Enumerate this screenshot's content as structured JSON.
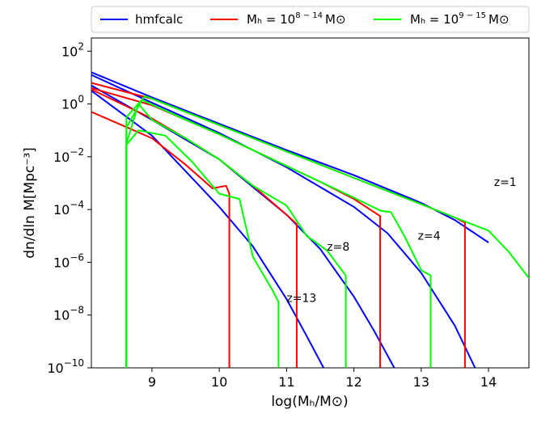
{
  "chart_data": {
    "type": "line",
    "xlabel": "log(Mₕ/M⊙)",
    "ylabel": "dn/dln M[Mpc⁻³]",
    "xlim": [
      8.1,
      14.6
    ],
    "ylim": [
      -10,
      2.5
    ],
    "y_scale": "log10",
    "x_ticks": [
      9,
      10,
      11,
      12,
      13,
      14
    ],
    "x_tick_labels": [
      "9",
      "10",
      "11",
      "12",
      "13",
      "14"
    ],
    "y_ticks": [
      2,
      0,
      -2,
      -4,
      -6,
      -8,
      -10
    ],
    "y_tick_labels": [
      {
        "base": "10",
        "exp": "2"
      },
      {
        "base": "10",
        "exp": "0"
      },
      {
        "base": "10",
        "exp": "−2"
      },
      {
        "base": "10",
        "exp": "−4"
      },
      {
        "base": "10",
        "exp": "−6"
      },
      {
        "base": "10",
        "exp": "−8"
      },
      {
        "base": "10",
        "exp": "−10"
      }
    ],
    "legend": {
      "placement": "top",
      "entries": [
        {
          "label": "hmfcalc",
          "color": "#0000ff"
        },
        {
          "label_main": "Mₕ = 10",
          "label_exp": "8 − 14",
          "label_end": "M⊙",
          "color": "#ff0000"
        },
        {
          "label_main": "Mₕ = 10",
          "label_exp": "9 − 15",
          "label_end": "M⊙",
          "color": "#00ff00"
        }
      ]
    },
    "annotations": [
      {
        "text": "z=1",
        "x": 14.08,
        "y": -3.1
      },
      {
        "text": "z=4",
        "x": 12.95,
        "y": -5.15
      },
      {
        "text": "z=8",
        "x": 11.6,
        "y": -5.55
      },
      {
        "text": "z=13",
        "x": 11.0,
        "y": -7.5
      }
    ],
    "series": [
      {
        "name": "hmfcalc z=1",
        "color": "#0000ff",
        "x": [
          8.1,
          9,
          10,
          11,
          12,
          13,
          13.5,
          14
        ],
        "y": [
          1.2,
          0.25,
          -0.75,
          -1.75,
          -2.7,
          -3.75,
          -4.4,
          -5.25
        ]
      },
      {
        "name": "hmfcalc z=4",
        "color": "#0000ff",
        "x": [
          8.1,
          9,
          10,
          11,
          12,
          12.5,
          13,
          13.5,
          13.8
        ],
        "y": [
          1.1,
          0.05,
          -1.1,
          -2.4,
          -3.9,
          -4.9,
          -6.4,
          -8.4,
          -10
        ]
      },
      {
        "name": "hmfcalc z=8",
        "color": "#0000ff",
        "x": [
          8.1,
          9,
          10,
          11,
          11.5,
          12,
          12.3,
          12.6
        ],
        "y": [
          0.7,
          -0.6,
          -2.1,
          -4.2,
          -5.5,
          -7.3,
          -8.6,
          -10
        ]
      },
      {
        "name": "hmfcalc z=13",
        "color": "#0000ff",
        "x": [
          8.1,
          9,
          10,
          10.5,
          11,
          11.3,
          11.55
        ],
        "y": [
          0.5,
          -1.2,
          -3.9,
          -5.4,
          -7.4,
          -8.8,
          -10
        ]
      },
      {
        "name": "Mh 1e8-14 z=1",
        "color": "#ff0000",
        "x": [
          8.1,
          9,
          9.5,
          10,
          10.5,
          11,
          11.5,
          12,
          12.5,
          13,
          13.5,
          13.65,
          13.65
        ],
        "y": [
          0.8,
          0.2,
          -0.3,
          -0.8,
          -1.3,
          -1.8,
          -2.3,
          -2.8,
          -3.3,
          -3.8,
          -4.3,
          -4.5,
          -10
        ]
      },
      {
        "name": "Mh 1e8-14 z=4",
        "color": "#ff0000",
        "x": [
          8.1,
          9,
          9.5,
          10,
          10.5,
          11,
          11.5,
          12,
          12.39,
          12.39
        ],
        "y": [
          0.6,
          -0.05,
          -0.6,
          -1.15,
          -1.75,
          -2.35,
          -2.95,
          -3.6,
          -4.25,
          -10
        ]
      },
      {
        "name": "Mh 1e8-14 z=8",
        "color": "#ff0000",
        "x": [
          8.1,
          9,
          9.5,
          10,
          10.5,
          11,
          11.15,
          11.15
        ],
        "y": [
          0.55,
          -0.55,
          -1.3,
          -2.1,
          -3.1,
          -4.2,
          -4.55,
          -10
        ]
      },
      {
        "name": "Mh 1e8-14 z=13",
        "color": "#ff0000",
        "x": [
          8.1,
          9,
          9.5,
          9.9,
          10.1,
          10.15,
          10.15
        ],
        "y": [
          -0.3,
          -1.3,
          -2.3,
          -3.2,
          -3.1,
          -3.4,
          -10
        ]
      },
      {
        "name": "Mh 1e9-15 z=1",
        "color": "#00ff00",
        "x": [
          8.62,
          8.62,
          8.9,
          9.5,
          10,
          10.5,
          11,
          11.5,
          12,
          12.5,
          13,
          13.5,
          14,
          14.3,
          14.6
        ],
        "y": [
          -10,
          -0.5,
          0.3,
          -0.3,
          -0.8,
          -1.3,
          -1.8,
          -2.3,
          -2.8,
          -3.3,
          -3.8,
          -4.3,
          -4.8,
          -5.6,
          -6.6
        ]
      },
      {
        "name": "Mh 1e9-15 z=4",
        "color": "#00ff00",
        "x": [
          8.62,
          8.62,
          8.85,
          9.5,
          10,
          10.5,
          11,
          11.5,
          12,
          12.4,
          12.55,
          12.75,
          13,
          13.14,
          13.14
        ],
        "y": [
          -10,
          -0.9,
          0.15,
          -0.6,
          -1.15,
          -1.75,
          -2.35,
          -2.95,
          -3.55,
          -4.05,
          -4.1,
          -5.0,
          -6.3,
          -6.5,
          -10
        ]
      },
      {
        "name": "Mh 1e9-15 z=8",
        "color": "#00ff00",
        "x": [
          8.62,
          8.62,
          8.8,
          9,
          9.5,
          10,
          10.5,
          11,
          11.3,
          11.6,
          11.88,
          11.88
        ],
        "y": [
          -10,
          -1.5,
          0.0,
          -0.6,
          -1.3,
          -2.1,
          -3.1,
          -3.85,
          -5.0,
          -5.55,
          -6.5,
          -10
        ]
      },
      {
        "name": "Mh 1e9-15 z=13",
        "color": "#00ff00",
        "x": [
          8.62,
          8.62,
          8.8,
          9.2,
          9.6,
          10,
          10.3,
          10.5,
          10.8,
          10.88,
          10.88
        ],
        "y": [
          -10,
          -1.55,
          -1.0,
          -1.2,
          -2.2,
          -3.4,
          -3.6,
          -5.8,
          -7.1,
          -7.5,
          -10
        ]
      }
    ]
  }
}
